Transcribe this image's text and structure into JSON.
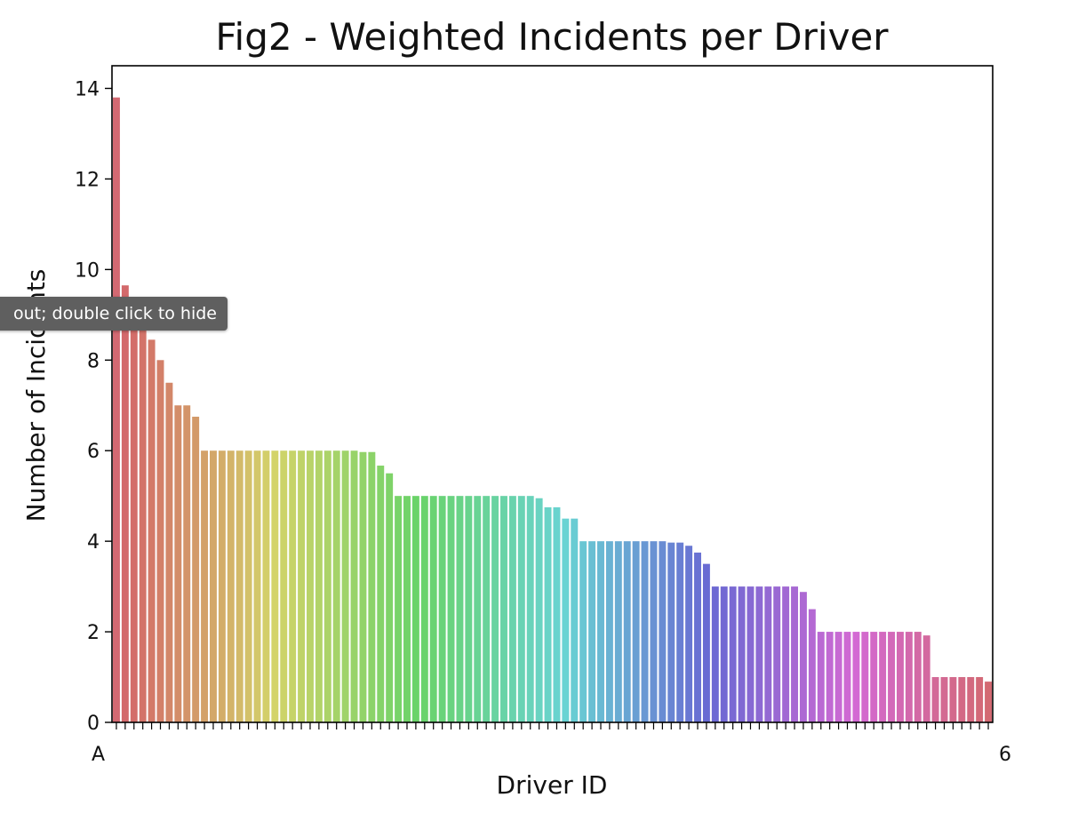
{
  "chart_data": {
    "type": "bar",
    "title": "Fig2 - Weighted Incidents per Driver",
    "xlabel": "Driver ID",
    "ylabel": "Number of Incidents",
    "ylim": [
      0,
      14.5
    ],
    "yticks": [
      0,
      2,
      4,
      6,
      8,
      10,
      12,
      14
    ],
    "grid": false,
    "legend": "none",
    "x_tick_first": "A",
    "x_tick_last": "6",
    "values": [
      13.8,
      9.65,
      9.0,
      8.75,
      8.45,
      8.0,
      7.5,
      7.0,
      7.0,
      6.75,
      6.0,
      6.0,
      6.0,
      6.0,
      6.0,
      6.0,
      6.0,
      6.0,
      6.0,
      6.0,
      6.0,
      6.0,
      6.0,
      6.0,
      6.0,
      6.0,
      6.0,
      6.0,
      5.97,
      5.97,
      5.67,
      5.5,
      5.0,
      5.0,
      5.0,
      5.0,
      5.0,
      5.0,
      5.0,
      5.0,
      5.0,
      5.0,
      5.0,
      5.0,
      5.0,
      5.0,
      5.0,
      5.0,
      4.95,
      4.75,
      4.75,
      4.5,
      4.5,
      4.0,
      4.0,
      4.0,
      4.0,
      4.0,
      4.0,
      4.0,
      4.0,
      4.0,
      4.0,
      3.97,
      3.97,
      3.9,
      3.75,
      3.5,
      3.0,
      3.0,
      3.0,
      3.0,
      3.0,
      3.0,
      3.0,
      3.0,
      3.0,
      3.0,
      2.88,
      2.5,
      2.0,
      2.0,
      2.0,
      2.0,
      2.0,
      2.0,
      2.0,
      2.0,
      2.0,
      2.0,
      2.0,
      2.0,
      1.92,
      1.0,
      1.0,
      1.0,
      1.0,
      1.0,
      1.0,
      0.9
    ]
  },
  "tooltip": {
    "text": "out; double click to hide"
  }
}
